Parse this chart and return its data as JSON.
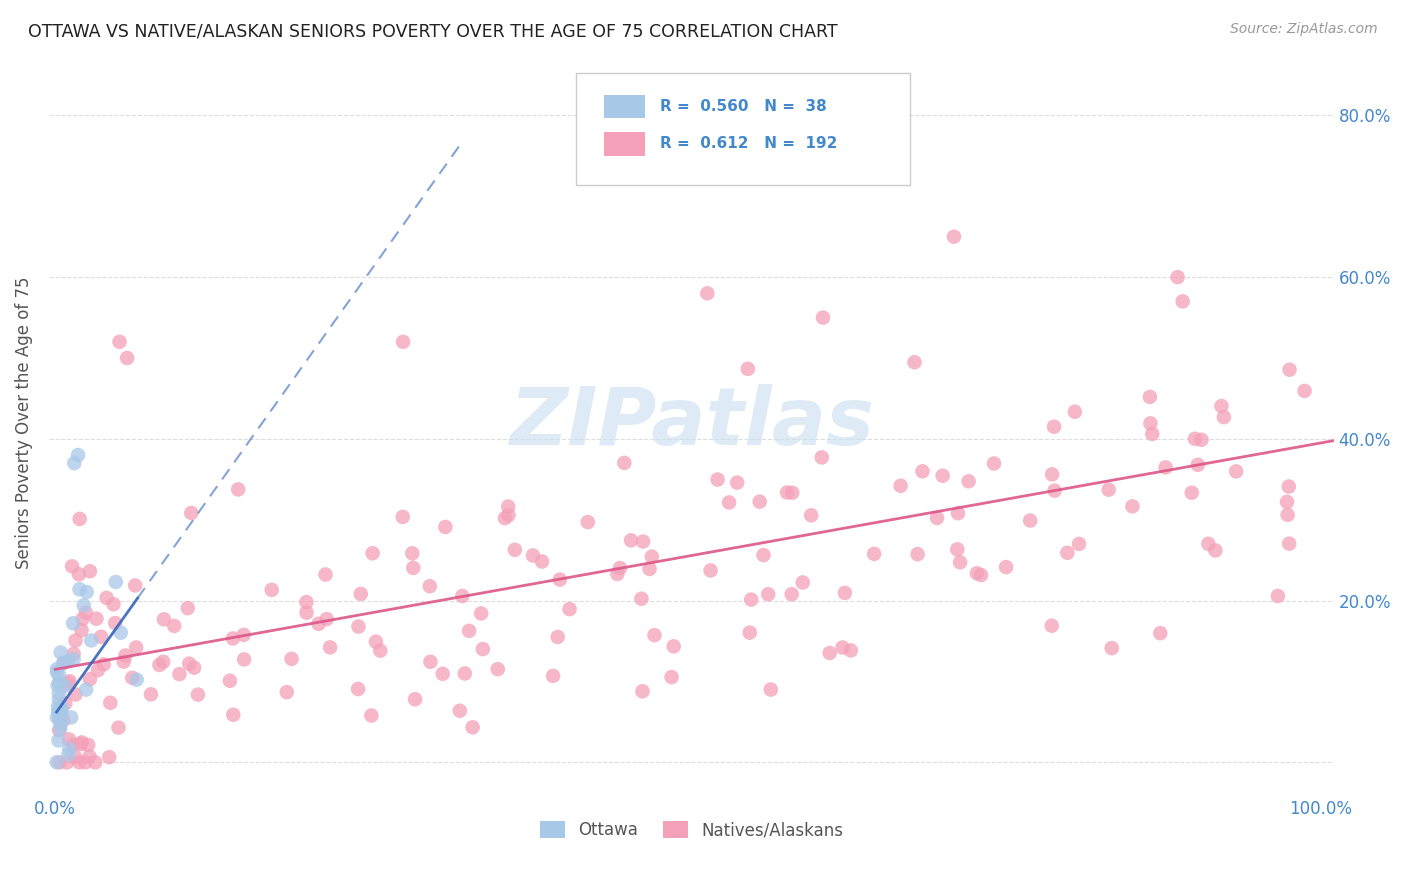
{
  "title": "OTTAWA VS NATIVE/ALASKAN SENIORS POVERTY OVER THE AGE OF 75 CORRELATION CHART",
  "source": "Source: ZipAtlas.com",
  "ylabel": "Seniors Poverty Over the Age of 75",
  "ottawa_R": 0.56,
  "ottawa_N": 38,
  "native_R": 0.612,
  "native_N": 192,
  "ottawa_color": "#a8c8e8",
  "native_color": "#f4a0b8",
  "ottawa_line_color": "#3366bb",
  "native_line_color": "#dd5588",
  "watermark_color": "#c8dff0",
  "legend_label_ottawa": "Ottawa",
  "legend_label_native": "Natives/Alaskans",
  "title_color": "#222222",
  "axis_color": "#555555",
  "grid_color": "#dddddd",
  "tick_color": "#4488cc",
  "right_tick_color": "#4488cc",
  "ylim_low": -0.04,
  "ylim_high": 0.88,
  "xlim_low": -0.005,
  "xlim_high": 1.01
}
